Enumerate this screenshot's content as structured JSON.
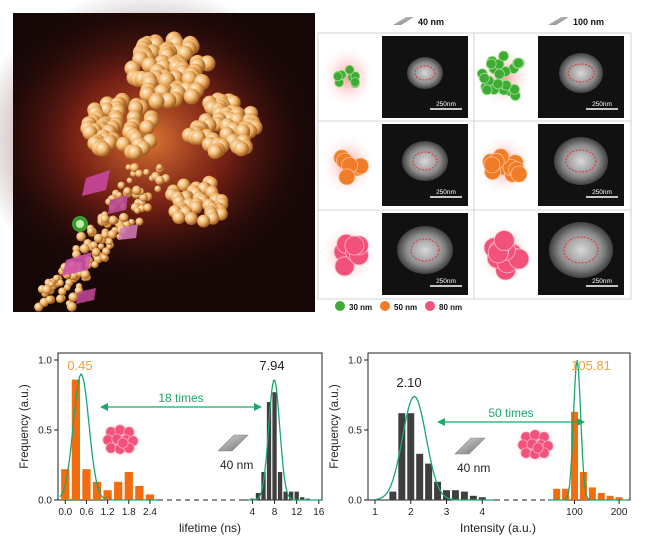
{
  "grid": {
    "col_headers": [
      "40 nm",
      "100 nm"
    ],
    "scale_label": "250nm"
  },
  "legend": {
    "items": [
      {
        "label": "30 nm",
        "color": "#3faa35"
      },
      {
        "label": "50 nm",
        "color": "#f07c28"
      },
      {
        "label": "80 nm",
        "color": "#f2527a"
      }
    ]
  },
  "chart_data": [
    {
      "type": "bar",
      "xlabel": "lifetime (ns)",
      "ylabel": "Frequency (a.u.)",
      "yticks": [
        "0.0",
        "0.5",
        "1.0"
      ],
      "ylim": [
        0,
        1.05
      ],
      "left_ticks": [
        "0.0",
        "0.6",
        "1.2",
        "1.8",
        "2.4"
      ],
      "right_ticks": [
        "4",
        "8",
        "12",
        "16"
      ],
      "series": [
        {
          "color": "#f26d10",
          "centers": [
            0.0,
            0.3,
            0.6,
            0.9,
            1.2,
            1.5,
            1.8,
            2.1,
            2.4
          ],
          "values": [
            0.22,
            0.86,
            0.22,
            0.13,
            0.07,
            0.13,
            0.2,
            0.1,
            0.04
          ]
        },
        {
          "color": "#3f3f3f",
          "centers": [
            4,
            5,
            6,
            7,
            8,
            9,
            10,
            11,
            12,
            13,
            14
          ],
          "values": [
            0.01,
            0.05,
            0.2,
            0.7,
            0.77,
            0.2,
            0.06,
            0.06,
            0.06,
            0.02,
            0.01
          ]
        }
      ],
      "peak_labels": [
        "0.45",
        "7.94"
      ],
      "annotation": "18 times",
      "size_label": "40 nm"
    },
    {
      "type": "bar",
      "xlabel": "Intensity (a.u.)",
      "ylabel": "Frequency (a.u.)",
      "yticks": [
        "0.0",
        "0.5",
        "1.0"
      ],
      "ylim": [
        0,
        1.05
      ],
      "left_ticks": [
        "1",
        "2",
        "3",
        "4"
      ],
      "right_ticks": [
        "100",
        "200"
      ],
      "series": [
        {
          "color": "#3f3f3f",
          "centers": [
            1.5,
            1.75,
            2.0,
            2.25,
            2.5,
            2.75,
            3.0,
            3.25,
            3.5,
            3.75,
            4.0
          ],
          "values": [
            0.06,
            0.62,
            0.62,
            0.33,
            0.26,
            0.13,
            0.07,
            0.07,
            0.06,
            0.03,
            0.02
          ]
        },
        {
          "color": "#f26d10",
          "centers": [
            60,
            80,
            100,
            120,
            140,
            160,
            180,
            200
          ],
          "values": [
            0.08,
            0.08,
            0.63,
            0.2,
            0.09,
            0.05,
            0.03,
            0.02
          ]
        }
      ],
      "peak_labels": [
        "2.10",
        "105.81"
      ],
      "annotation": "50 times",
      "size_label": "40 nm"
    }
  ]
}
